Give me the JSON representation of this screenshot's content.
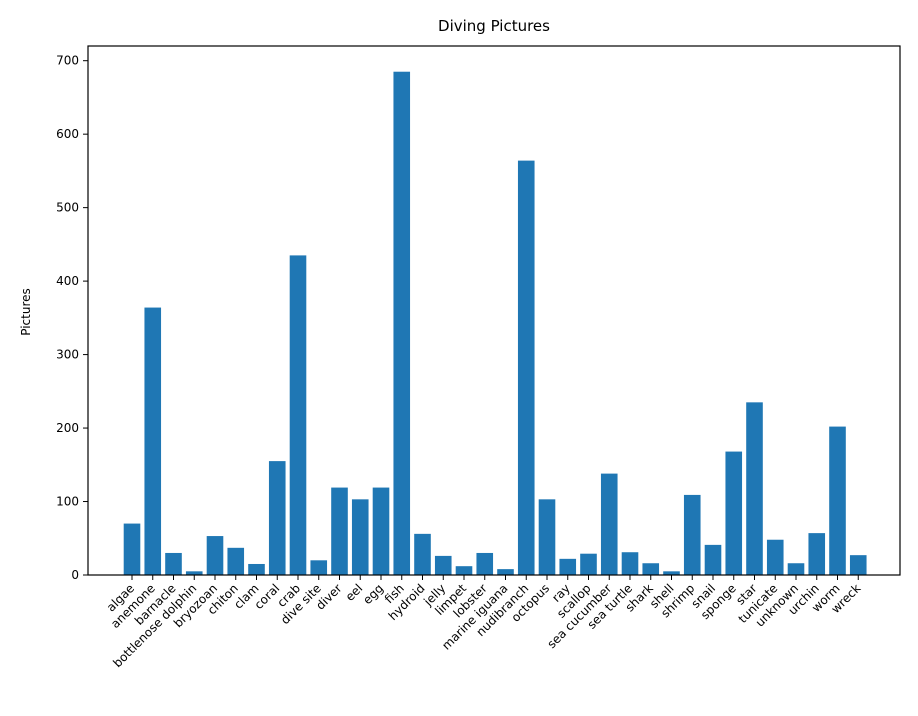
{
  "chart_data": {
    "type": "bar",
    "title": "Diving Pictures",
    "xlabel": "",
    "ylabel": "Pictures",
    "ylim": [
      0,
      720
    ],
    "yticks": [
      0,
      100,
      200,
      300,
      400,
      500,
      600,
      700
    ],
    "bar_color": "#1f77b4",
    "categories": [
      "algae",
      "anemone",
      "barnacle",
      "bottlenose dolphin",
      "bryozoan",
      "chiton",
      "clam",
      "coral",
      "crab",
      "dive site",
      "diver",
      "eel",
      "egg",
      "fish",
      "hydroid",
      "jelly",
      "limpet",
      "lobster",
      "marine iguana",
      "nudibranch",
      "octopus",
      "ray",
      "scallop",
      "sea cucumber",
      "sea turtle",
      "shark",
      "shell",
      "shrimp",
      "snail",
      "sponge",
      "star",
      "tunicate",
      "unknown",
      "urchin",
      "worm",
      "wreck"
    ],
    "values": [
      70,
      364,
      30,
      5,
      53,
      37,
      15,
      155,
      435,
      20,
      119,
      103,
      119,
      685,
      56,
      26,
      12,
      30,
      8,
      564,
      103,
      22,
      29,
      138,
      31,
      16,
      5,
      109,
      41,
      168,
      235,
      48,
      16,
      57,
      202,
      27
    ]
  }
}
